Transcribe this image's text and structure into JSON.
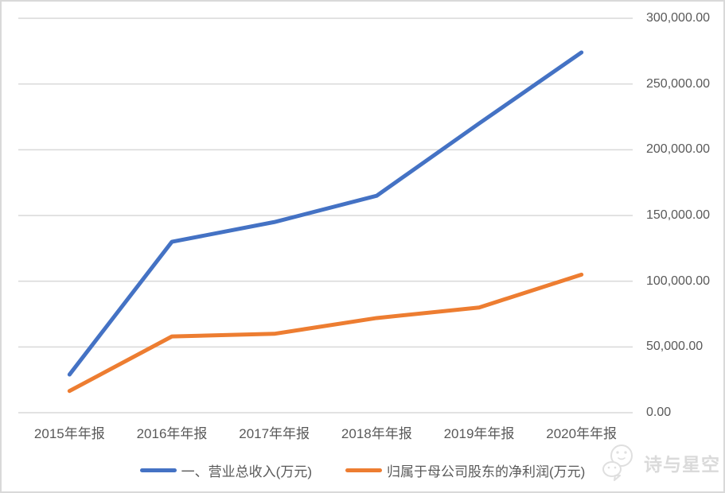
{
  "watermark": {
    "text": "诗与星空"
  },
  "chart_data": {
    "type": "line",
    "categories": [
      "2015年年报",
      "2016年年报",
      "2017年年报",
      "2018年年报",
      "2019年年报",
      "2020年年报"
    ],
    "series": [
      {
        "name": "一、营业总收入(万元)",
        "color": "#4472C4",
        "values": [
          29000,
          130000,
          145000,
          165000,
          220000,
          274000
        ]
      },
      {
        "name": "归属于母公司股东的净利润(万元)",
        "color": "#ED7D31",
        "values": [
          16500,
          58000,
          60000,
          72000,
          80000,
          105000
        ]
      }
    ],
    "title": "",
    "xlabel": "",
    "ylabel": "",
    "ylim": [
      0,
      300000
    ],
    "ytick_interval": 50000,
    "ytick_labels_top_to_bottom": [
      "300,000.00",
      "250,000.00",
      "200,000.00",
      "150,000.00",
      "100,000.00",
      "50,000.00",
      "0.00"
    ],
    "yaxis_side": "right",
    "grid": true,
    "legend_position": "bottom",
    "gridline_color": "#d9d9d9",
    "text_color": "#595959"
  }
}
